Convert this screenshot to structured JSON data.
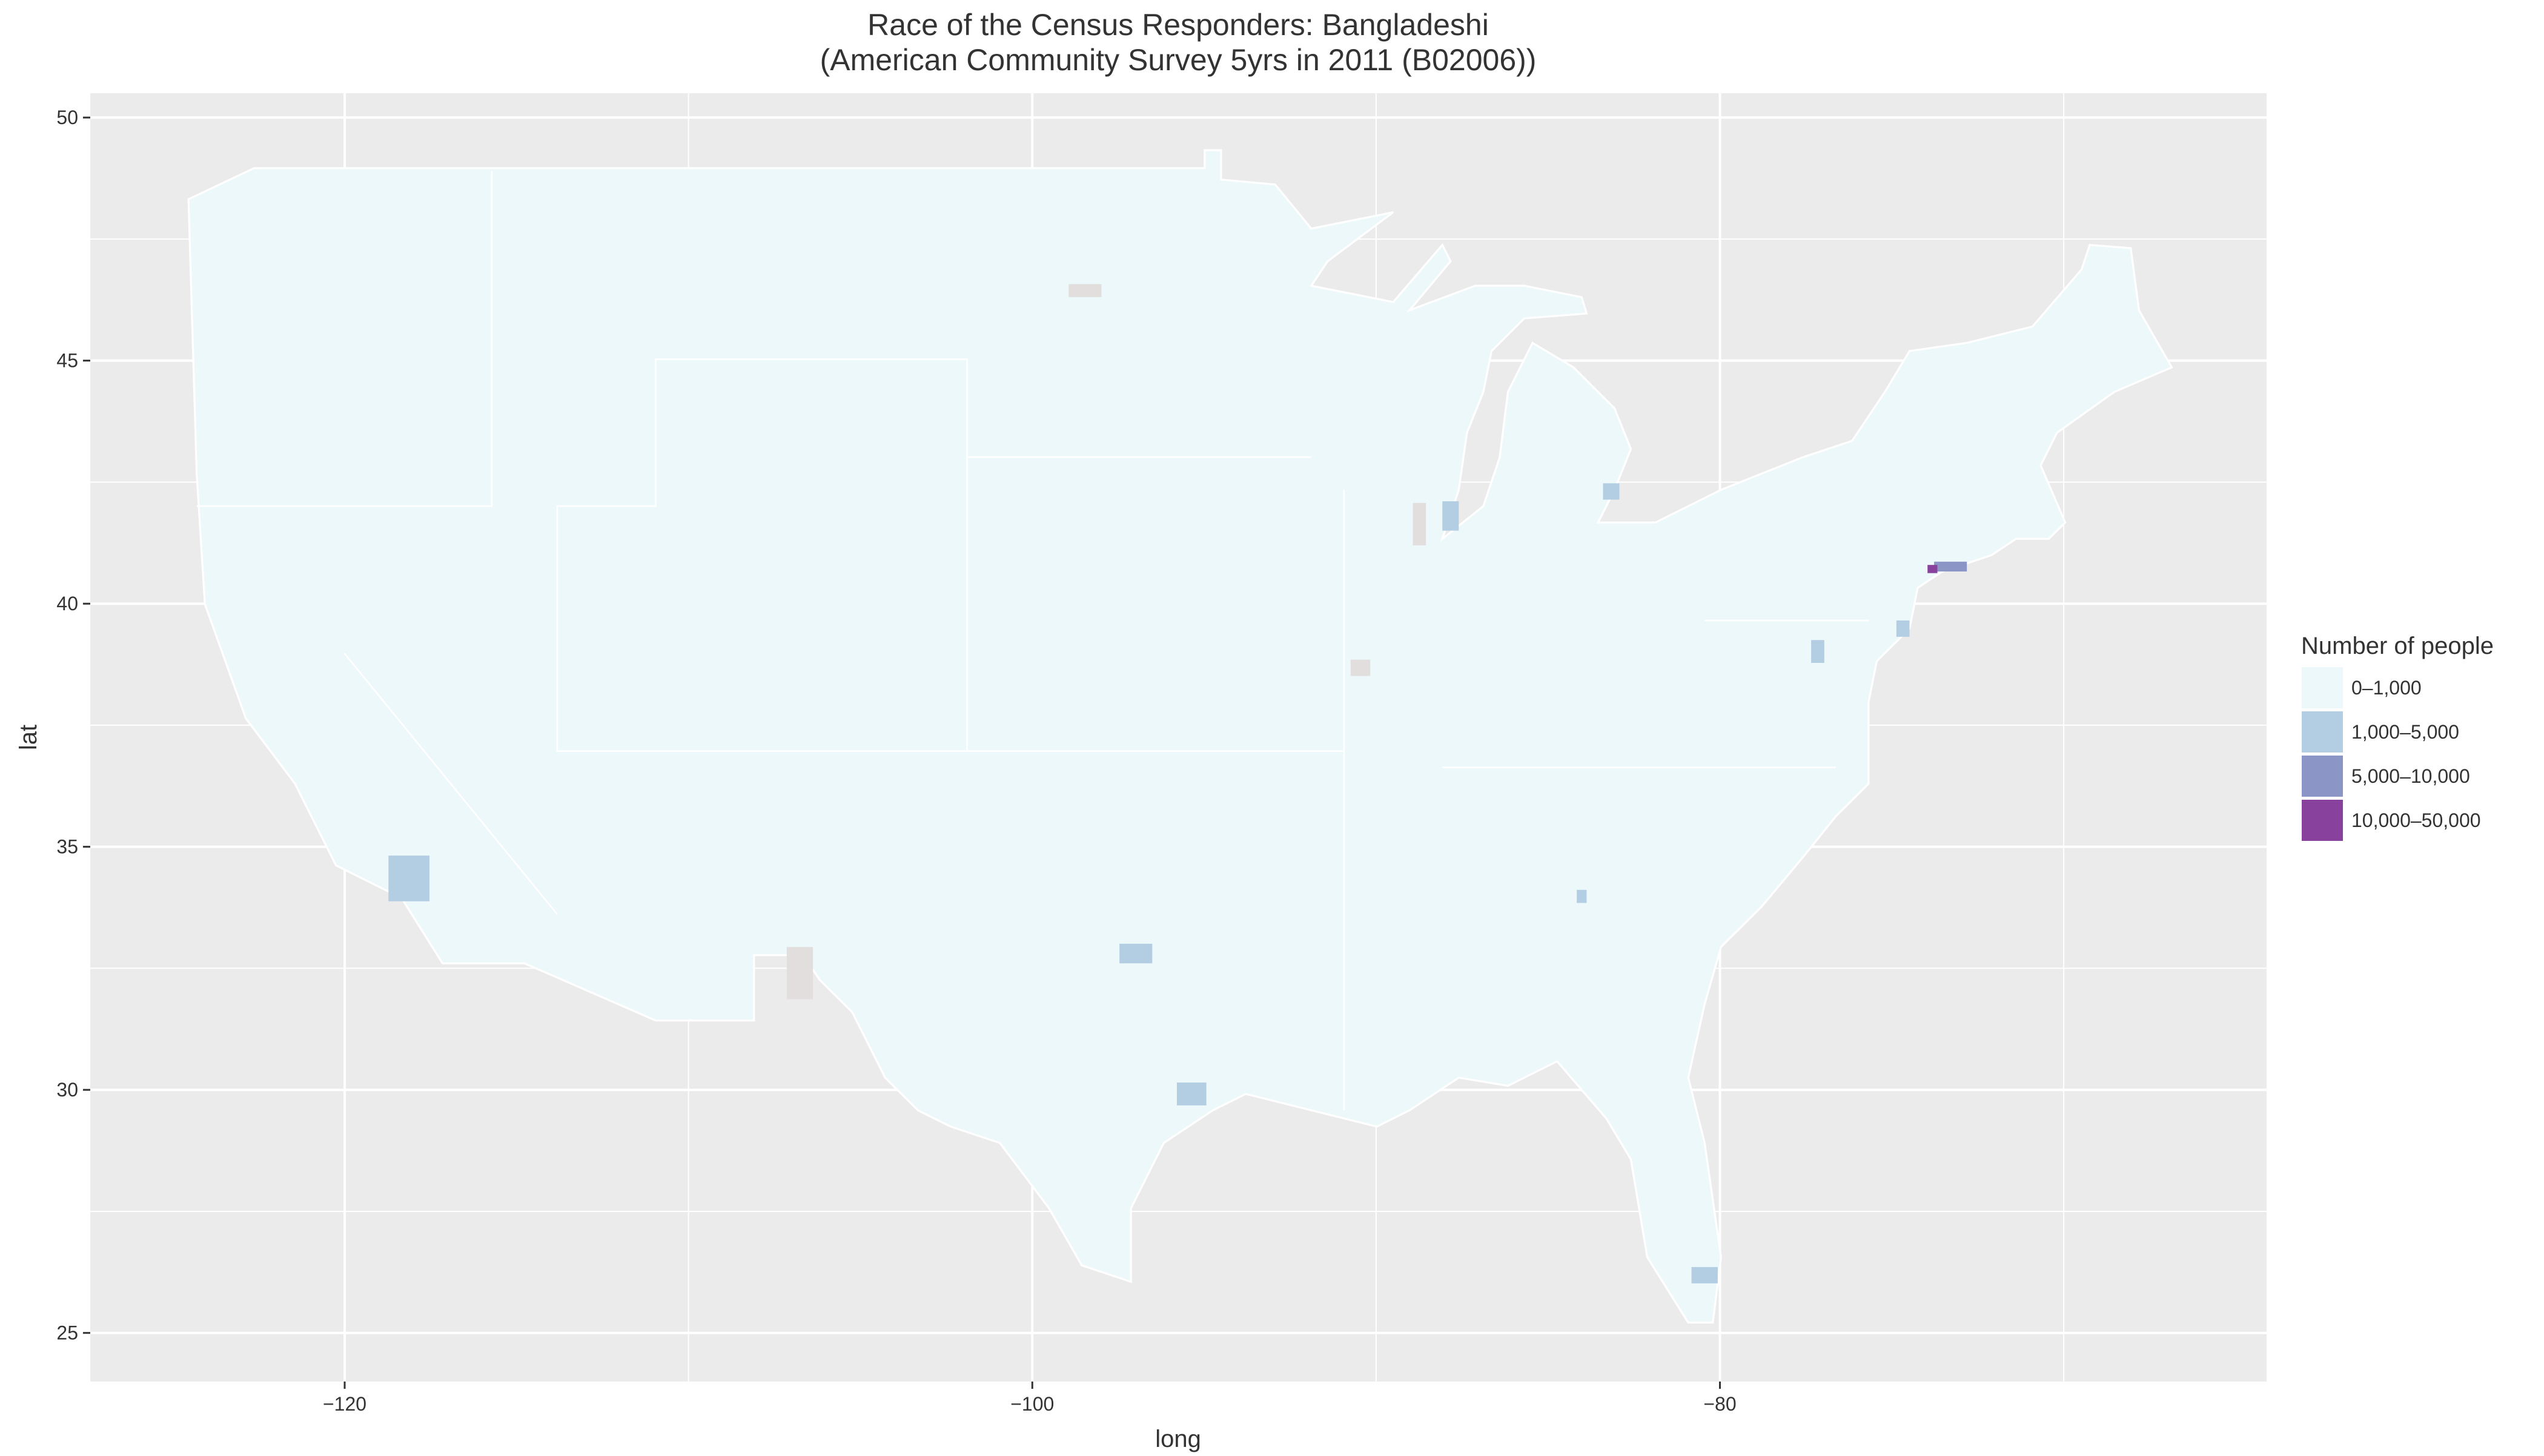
{
  "chart_data": {
    "type": "map",
    "title": "Race of the Census Responders: Bangladeshi",
    "subtitle": "(American Community Survey 5yrs in 2011 (B02006))",
    "xlabel": "long",
    "ylabel": "lat",
    "xlim": [
      -127.4,
      -64.1
    ],
    "ylim": [
      24.0,
      50.5
    ],
    "xticks": [
      {
        "value": -120,
        "label": "−120"
      },
      {
        "value": -100,
        "label": "−100"
      },
      {
        "value": -80,
        "label": "−80"
      }
    ],
    "yticks": [
      25,
      30,
      35,
      40,
      45,
      50
    ],
    "grid": true,
    "legend": {
      "title": "Number of people",
      "position": "right",
      "categories": [
        "0–1,000",
        "1,000–5,000",
        "5,000–10,000",
        "10,000–50,000"
      ],
      "colors": [
        "#edf8fb",
        "#b3cde3",
        "#8c96c6",
        "#88419d"
      ]
    }
  }
}
